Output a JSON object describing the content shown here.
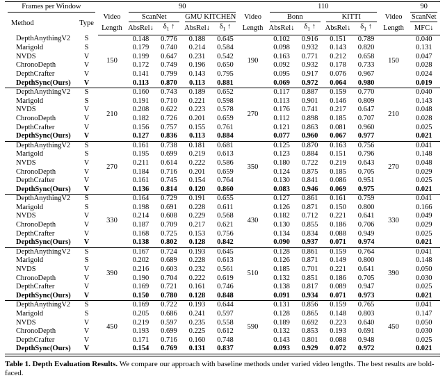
{
  "table": {
    "top_header": {
      "frames_label": "Frames per Window",
      "group_left": "90",
      "group_mid": "110",
      "group_right": "90"
    },
    "columns": {
      "method": "Method",
      "type": "Type",
      "video": "Video",
      "length": "Length",
      "absrel": "AbsRel↓",
      "delta_base": "δ",
      "delta_sub": "1",
      "delta_arrow": " ↑",
      "mfc": "MFC↓"
    },
    "datasets": {
      "scannet": "ScanNet",
      "gmu": "GMU KITCHEN",
      "bonn": "Bonn",
      "kitti": "KITTI",
      "scannet_right": "ScanNet"
    },
    "blocks": [
      {
        "vl_left": "150",
        "vl_mid": "190",
        "vl_right": "150",
        "rows": [
          {
            "method": "DepthAnythingV2",
            "type": "S",
            "bold": false,
            "values": [
              "0.148",
              "0.776",
              "0.188",
              "0.645",
              "0.102",
              "0.916",
              "0.151",
              "0.789",
              "0.040"
            ]
          },
          {
            "method": "Marigold",
            "type": "S",
            "bold": false,
            "values": [
              "0.179",
              "0.740",
              "0.214",
              "0.584",
              "0.098",
              "0.932",
              "0.143",
              "0.820",
              "0.131"
            ]
          },
          {
            "method": "NVDS",
            "type": "V",
            "bold": false,
            "values": [
              "0.199",
              "0.647",
              "0.231",
              "0.542",
              "0.163",
              "0.771",
              "0.212",
              "0.658",
              "0.047"
            ]
          },
          {
            "method": "ChronoDepth",
            "type": "V",
            "bold": false,
            "values": [
              "0.172",
              "0.749",
              "0.196",
              "0.650",
              "0.092",
              "0.932",
              "0.178",
              "0.733",
              "0.028"
            ]
          },
          {
            "method": "DepthCrafter",
            "type": "V",
            "bold": false,
            "values": [
              "0.141",
              "0.799",
              "0.143",
              "0.795",
              "0.095",
              "0.917",
              "0.076",
              "0.967",
              "0.024"
            ]
          },
          {
            "method": "DepthSync(Ours)",
            "type": "V",
            "bold": true,
            "values": [
              "0.113",
              "0.870",
              "0.113",
              "0.881",
              "0.069",
              "0.972",
              "0.064",
              "0.980",
              "0.019"
            ]
          }
        ]
      },
      {
        "vl_left": "210",
        "vl_mid": "270",
        "vl_right": "210",
        "rows": [
          {
            "method": "DepthAnythingV2",
            "type": "S",
            "bold": false,
            "values": [
              "0.160",
              "0.743",
              "0.189",
              "0.652",
              "0.117",
              "0.887",
              "0.159",
              "0.770",
              "0.040"
            ]
          },
          {
            "method": "Marigold",
            "type": "S",
            "bold": false,
            "values": [
              "0.191",
              "0.710",
              "0.221",
              "0.598",
              "0.113",
              "0.901",
              "0.146",
              "0.809",
              "0.143"
            ]
          },
          {
            "method": "NVDS",
            "type": "V",
            "bold": false,
            "values": [
              "0.208",
              "0.622",
              "0.223",
              "0.578",
              "0.176",
              "0.741",
              "0.217",
              "0.647",
              "0.048"
            ]
          },
          {
            "method": "ChronoDepth",
            "type": "V",
            "bold": false,
            "values": [
              "0.182",
              "0.726",
              "0.201",
              "0.659",
              "0.112",
              "0.898",
              "0.185",
              "0.707",
              "0.028"
            ]
          },
          {
            "method": "DepthCrafter",
            "type": "V",
            "bold": false,
            "values": [
              "0.156",
              "0.757",
              "0.155",
              "0.761",
              "0.121",
              "0.863",
              "0.081",
              "0.960",
              "0.025"
            ]
          },
          {
            "method": "DepthSync(Ours)",
            "type": "V",
            "bold": true,
            "values": [
              "0.127",
              "0.836",
              "0.113",
              "0.884",
              "0.077",
              "0.960",
              "0.067",
              "0.977",
              "0.021"
            ]
          }
        ]
      },
      {
        "vl_left": "270",
        "vl_mid": "350",
        "vl_right": "270",
        "rows": [
          {
            "method": "DepthAnythingV2",
            "type": "S",
            "bold": false,
            "values": [
              "0.161",
              "0.738",
              "0.181",
              "0.681",
              "0.125",
              "0.870",
              "0.163",
              "0.756",
              "0.041"
            ]
          },
          {
            "method": "Marigold",
            "type": "S",
            "bold": false,
            "values": [
              "0.195",
              "0.699",
              "0.219",
              "0.613",
              "0.123",
              "0.884",
              "0.151",
              "0.796",
              "0.148"
            ]
          },
          {
            "method": "NVDS",
            "type": "V",
            "bold": false,
            "values": [
              "0.211",
              "0.614",
              "0.222",
              "0.586",
              "0.180",
              "0.722",
              "0.219",
              "0.643",
              "0.048"
            ]
          },
          {
            "method": "ChronoDepth",
            "type": "V",
            "bold": false,
            "values": [
              "0.184",
              "0.716",
              "0.201",
              "0.659",
              "0.124",
              "0.875",
              "0.185",
              "0.705",
              "0.029"
            ]
          },
          {
            "method": "DepthCrafter",
            "type": "V",
            "bold": false,
            "values": [
              "0.161",
              "0.745",
              "0.154",
              "0.764",
              "0.130",
              "0.841",
              "0.086",
              "0.951",
              "0.025"
            ]
          },
          {
            "method": "DepthSync(Ours)",
            "type": "V",
            "bold": true,
            "values": [
              "0.136",
              "0.814",
              "0.120",
              "0.860",
              "0.083",
              "0.946",
              "0.069",
              "0.975",
              "0.021"
            ]
          }
        ]
      },
      {
        "vl_left": "330",
        "vl_mid": "430",
        "vl_right": "330",
        "rows": [
          {
            "method": "DepthAnythingV2",
            "type": "S",
            "bold": false,
            "values": [
              "0.164",
              "0.729",
              "0.191",
              "0.655",
              "0.127",
              "0.861",
              "0.161",
              "0.759",
              "0.041"
            ]
          },
          {
            "method": "Marigold",
            "type": "S",
            "bold": false,
            "values": [
              "0.198",
              "0.691",
              "0.228",
              "0.611",
              "0.126",
              "0.871",
              "0.150",
              "0.800",
              "0.166"
            ]
          },
          {
            "method": "NVDS",
            "type": "V",
            "bold": false,
            "values": [
              "0.214",
              "0.608",
              "0.229",
              "0.568",
              "0.182",
              "0.712",
              "0.221",
              "0.641",
              "0.049"
            ]
          },
          {
            "method": "ChronoDepth",
            "type": "V",
            "bold": false,
            "values": [
              "0.187",
              "0.709",
              "0.217",
              "0.621",
              "0.130",
              "0.855",
              "0.186",
              "0.706",
              "0.029"
            ]
          },
          {
            "method": "DepthCrafter",
            "type": "V",
            "bold": false,
            "values": [
              "0.168",
              "0.725",
              "0.153",
              "0.756",
              "0.134",
              "0.834",
              "0.088",
              "0.949",
              "0.025"
            ]
          },
          {
            "method": "DepthSync(Ours)",
            "type": "V",
            "bold": true,
            "values": [
              "0.138",
              "0.802",
              "0.128",
              "0.842",
              "0.090",
              "0.937",
              "0.071",
              "0.974",
              "0.021"
            ]
          }
        ]
      },
      {
        "vl_left": "390",
        "vl_mid": "510",
        "vl_right": "390",
        "rows": [
          {
            "method": "DepthAnythingV2",
            "type": "S",
            "bold": false,
            "values": [
              "0.167",
              "0.724",
              "0.193",
              "0.645",
              "0.128",
              "0.861",
              "0.159",
              "0.764",
              "0.041"
            ]
          },
          {
            "method": "Marigold",
            "type": "S",
            "bold": false,
            "values": [
              "0.202",
              "0.689",
              "0.228",
              "0.613",
              "0.126",
              "0.871",
              "0.149",
              "0.800",
              "0.148"
            ]
          },
          {
            "method": "NVDS",
            "type": "V",
            "bold": false,
            "values": [
              "0.216",
              "0.603",
              "0.232",
              "0.561",
              "0.185",
              "0.701",
              "0.221",
              "0.641",
              "0.050"
            ]
          },
          {
            "method": "ChronoDepth",
            "type": "V",
            "bold": false,
            "values": [
              "0.190",
              "0.704",
              "0.222",
              "0.619",
              "0.132",
              "0.851",
              "0.186",
              "0.705",
              "0.030"
            ]
          },
          {
            "method": "DepthCrafter",
            "type": "V",
            "bold": false,
            "values": [
              "0.169",
              "0.721",
              "0.161",
              "0.746",
              "0.138",
              "0.817",
              "0.089",
              "0.947",
              "0.025"
            ]
          },
          {
            "method": "DepthSync(Ours)",
            "type": "V",
            "bold": true,
            "values": [
              "0.150",
              "0.780",
              "0.128",
              "0.848",
              "0.091",
              "0.934",
              "0.071",
              "0.973",
              "0.021"
            ]
          }
        ]
      },
      {
        "vl_left": "450",
        "vl_mid": "590",
        "vl_right": "450",
        "rows": [
          {
            "method": "DepthAnythingV2",
            "type": "S",
            "bold": false,
            "values": [
              "0.169",
              "0.722",
              "0.193",
              "0.644",
              "0.131",
              "0.856",
              "0.159",
              "0.765",
              "0.041"
            ]
          },
          {
            "method": "Marigold",
            "type": "S",
            "bold": false,
            "values": [
              "0.205",
              "0.686",
              "0.241",
              "0.597",
              "0.128",
              "0.865",
              "0.148",
              "0.803",
              "0.147"
            ]
          },
          {
            "method": "NVDS",
            "type": "V",
            "bold": false,
            "values": [
              "0.219",
              "0.597",
              "0.235",
              "0.558",
              "0.189",
              "0.692",
              "0.223",
              "0.640",
              "0.050"
            ]
          },
          {
            "method": "ChronoDepth",
            "type": "V",
            "bold": false,
            "values": [
              "0.193",
              "0.699",
              "0.225",
              "0.612",
              "0.132",
              "0.853",
              "0.193",
              "0.691",
              "0.030"
            ]
          },
          {
            "method": "DepthCrafter",
            "type": "V",
            "bold": false,
            "values": [
              "0.171",
              "0.716",
              "0.160",
              "0.748",
              "0.143",
              "0.801",
              "0.088",
              "0.948",
              "0.025"
            ]
          },
          {
            "method": "DepthSync(Ours)",
            "type": "V",
            "bold": true,
            "values": [
              "0.154",
              "0.769",
              "0.131",
              "0.837",
              "0.093",
              "0.929",
              "0.072",
              "0.972",
              "0.021"
            ]
          }
        ]
      }
    ]
  },
  "caption": {
    "bold": "Table 1. Depth Evaluation Results.",
    "text": " We compare our approach with baseline methods under varied video lengths. The best results are bold-faced."
  }
}
